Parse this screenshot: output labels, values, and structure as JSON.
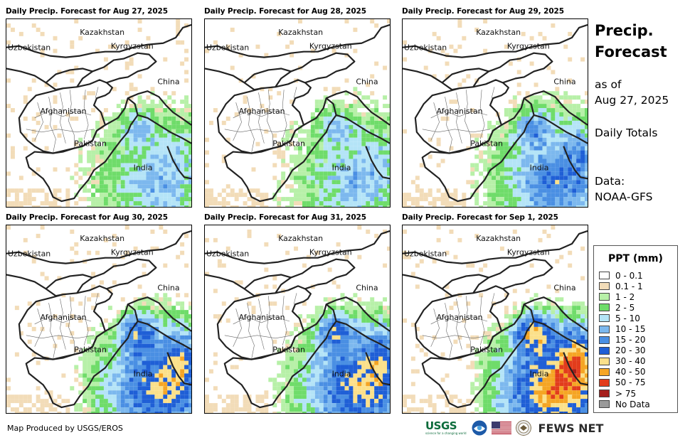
{
  "panels": [
    {
      "title": "Daily Precip. Forecast for Aug 27, 2025",
      "intensity": 1,
      "seed": 11
    },
    {
      "title": "Daily Precip. Forecast for Aug 28, 2025",
      "intensity": 1,
      "seed": 23
    },
    {
      "title": "Daily Precip. Forecast for Aug 29, 2025",
      "intensity": 2,
      "seed": 37
    },
    {
      "title": "Daily Precip. Forecast for Aug 30, 2025",
      "intensity": 3,
      "seed": 41
    },
    {
      "title": "Daily Precip. Forecast for Aug 31, 2025",
      "intensity": 3,
      "seed": 53
    },
    {
      "title": "Daily Precip. Forecast for Sep 1, 2025",
      "intensity": 4,
      "seed": 67
    }
  ],
  "map_labels": {
    "kazakhstan": "Kazakhstan",
    "uzbekistan": "Uzbekistan",
    "kyrgyzstan": "Kyrgyzstan",
    "china": "China",
    "afghanistan": "Afghanistan",
    "pakistan": "Pakistan",
    "india": "India"
  },
  "side": {
    "title_line1": "Precip.",
    "title_line2": "Forecast",
    "asof_line1": "as of",
    "asof_line2": "Aug 27, 2025",
    "totals": "Daily Totals",
    "data_line1": "Data:",
    "data_line2": "NOAA-GFS"
  },
  "legend": {
    "title": "PPT (mm)",
    "items": [
      {
        "label": "0 - 0.1",
        "color": "#ffffff"
      },
      {
        "label": "0.1 - 1",
        "color": "#f2dcb8"
      },
      {
        "label": "1 - 2",
        "color": "#b7f0a8"
      },
      {
        "label": "2 - 5",
        "color": "#6fdc6a"
      },
      {
        "label": "5 - 10",
        "color": "#b4e4f7"
      },
      {
        "label": "10 - 15",
        "color": "#7cb8ee"
      },
      {
        "label": "15 - 20",
        "color": "#4a8fe3"
      },
      {
        "label": "20 - 30",
        "color": "#1f5fd6"
      },
      {
        "label": "30 - 40",
        "color": "#fbe08a"
      },
      {
        "label": "40 - 50",
        "color": "#f5a524"
      },
      {
        "label": "50 - 75",
        "color": "#e23c1c"
      },
      {
        "label": "> 75",
        "color": "#a51f1b"
      },
      {
        "label": "No Data",
        "color": "#9a9a9a"
      }
    ]
  },
  "footer": {
    "credit": "Map Produced by USGS/EROS",
    "usgs": "USGS",
    "usgs_tagline": "science for a changing world",
    "fews": "FEWS NET"
  }
}
